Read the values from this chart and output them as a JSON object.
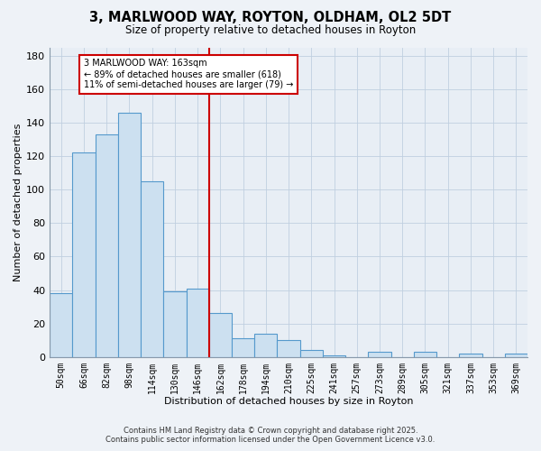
{
  "title": "3, MARLWOOD WAY, ROYTON, OLDHAM, OL2 5DT",
  "subtitle": "Size of property relative to detached houses in Royton",
  "xlabel": "Distribution of detached houses by size in Royton",
  "ylabel": "Number of detached properties",
  "bar_labels": [
    "50sqm",
    "66sqm",
    "82sqm",
    "98sqm",
    "114sqm",
    "130sqm",
    "146sqm",
    "162sqm",
    "178sqm",
    "194sqm",
    "210sqm",
    "225sqm",
    "241sqm",
    "257sqm",
    "273sqm",
    "289sqm",
    "305sqm",
    "321sqm",
    "337sqm",
    "353sqm",
    "369sqm"
  ],
  "bar_values": [
    38,
    122,
    133,
    146,
    105,
    39,
    41,
    26,
    11,
    14,
    10,
    4,
    1,
    0,
    3,
    0,
    3,
    0,
    2,
    0,
    2
  ],
  "bar_color": "#cce0f0",
  "bar_edge_color": "#5599cc",
  "vline_color": "#cc0000",
  "annotation_text": "3 MARLWOOD WAY: 163sqm\n← 89% of detached houses are smaller (618)\n11% of semi-detached houses are larger (79) →",
  "annotation_box_color": "#ffffff",
  "annotation_box_edge": "#cc0000",
  "ylim": [
    0,
    185
  ],
  "yticks": [
    0,
    20,
    40,
    60,
    80,
    100,
    120,
    140,
    160,
    180
  ],
  "footer_line1": "Contains HM Land Registry data © Crown copyright and database right 2025.",
  "footer_line2": "Contains public sector information licensed under the Open Government Licence v3.0.",
  "bg_color": "#eef2f7",
  "plot_bg_color": "#e8eef5",
  "grid_color": "#c0cfe0"
}
